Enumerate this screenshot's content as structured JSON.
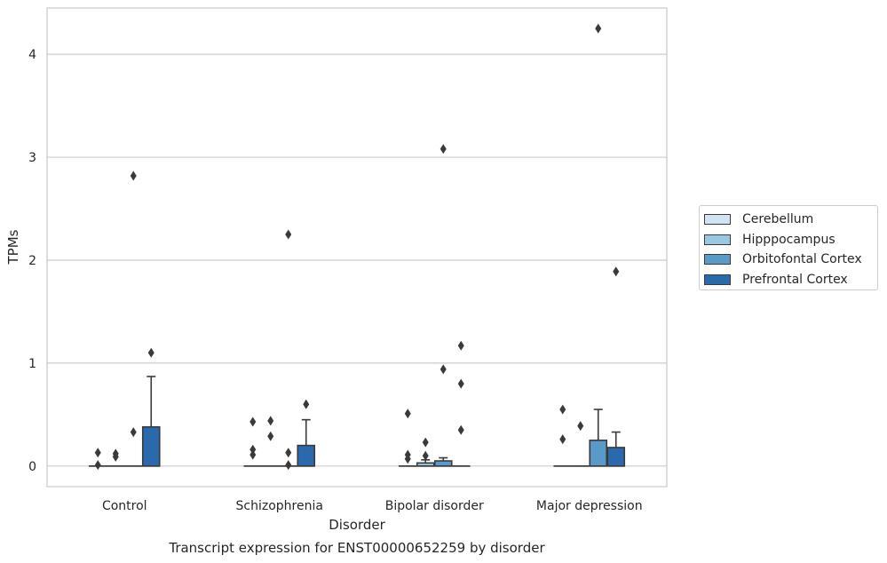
{
  "chart_data": {
    "type": "box",
    "caption": "Transcript expression for ENST00000652259 by disorder",
    "xlabel": "Disorder",
    "ylabel": "TPMs",
    "ylim": [
      -0.2,
      4.45
    ],
    "yticks": [
      0,
      1,
      2,
      3,
      4
    ],
    "grid": "horizontal",
    "legend_position": "right",
    "categories": [
      "Control",
      "Schizophrenia",
      "Bipolar disorder",
      "Major depression"
    ],
    "series": [
      {
        "name": "Cerebellum",
        "color": "#d2e3f3",
        "boxes": [
          {
            "q1": 0,
            "median": 0,
            "q3": 0,
            "whisker_low": 0,
            "whisker_high": 0,
            "outliers": [
              0.13,
              0.01
            ]
          },
          {
            "q1": 0,
            "median": 0,
            "q3": 0,
            "whisker_low": 0,
            "whisker_high": 0,
            "outliers": [
              0.43,
              0.16,
              0.11
            ]
          },
          {
            "q1": 0,
            "median": 0,
            "q3": 0,
            "whisker_low": 0,
            "whisker_high": 0,
            "outliers": [
              0.51,
              0.11,
              0.07
            ]
          },
          {
            "q1": 0,
            "median": 0,
            "q3": 0,
            "whisker_low": 0,
            "whisker_high": 0,
            "outliers": [
              0.55,
              0.26
            ]
          }
        ]
      },
      {
        "name": "Hipppocampus",
        "color": "#9ac8e0",
        "boxes": [
          {
            "q1": 0,
            "median": 0,
            "q3": 0,
            "whisker_low": 0,
            "whisker_high": 0,
            "outliers": [
              0.12,
              0.09
            ]
          },
          {
            "q1": 0,
            "median": 0,
            "q3": 0,
            "whisker_low": 0,
            "whisker_high": 0,
            "outliers": [
              0.44,
              0.29
            ]
          },
          {
            "q1": 0,
            "median": 0,
            "q3": 0.03,
            "whisker_low": 0,
            "whisker_high": 0.06,
            "outliers": [
              0.23,
              0.1
            ]
          },
          {
            "q1": 0,
            "median": 0,
            "q3": 0,
            "whisker_low": 0,
            "whisker_high": 0,
            "outliers": [
              0.39
            ]
          }
        ]
      },
      {
        "name": "Orbitofontal Cortex",
        "color": "#5a9ac8",
        "boxes": [
          {
            "q1": 0,
            "median": 0,
            "q3": 0,
            "whisker_low": 0,
            "whisker_high": 0,
            "outliers": [
              0.33,
              2.82
            ]
          },
          {
            "q1": 0,
            "median": 0,
            "q3": 0,
            "whisker_low": 0,
            "whisker_high": 0,
            "outliers": [
              2.25,
              0.13,
              0.01
            ]
          },
          {
            "q1": 0,
            "median": 0,
            "q3": 0.05,
            "whisker_low": 0,
            "whisker_high": 0.08,
            "outliers": [
              3.08,
              0.94
            ]
          },
          {
            "q1": 0,
            "median": 0,
            "q3": 0.25,
            "whisker_low": 0,
            "whisker_high": 0.55,
            "outliers": [
              4.25
            ]
          }
        ]
      },
      {
        "name": "Prefrontal Cortex",
        "color": "#2a6aac",
        "boxes": [
          {
            "q1": 0,
            "median": 0,
            "q3": 0.38,
            "whisker_low": 0,
            "whisker_high": 0.87,
            "outliers": [
              1.1
            ]
          },
          {
            "q1": 0,
            "median": 0,
            "q3": 0.2,
            "whisker_low": 0,
            "whisker_high": 0.45,
            "outliers": [
              0.6
            ]
          },
          {
            "q1": 0,
            "median": 0,
            "q3": 0,
            "whisker_low": 0,
            "whisker_high": 0,
            "outliers": [
              1.17,
              0.8,
              0.35
            ]
          },
          {
            "q1": 0,
            "median": 0,
            "q3": 0.18,
            "whisker_low": 0,
            "whisker_high": 0.33,
            "outliers": [
              1.89
            ]
          }
        ]
      }
    ]
  }
}
